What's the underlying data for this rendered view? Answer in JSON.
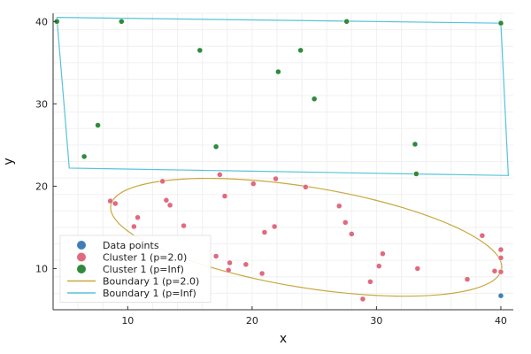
{
  "chart_data": {
    "type": "scatter",
    "xlabel": "x",
    "ylabel": "y",
    "xlim": [
      4,
      41
    ],
    "ylim": [
      5,
      41
    ],
    "x_ticks": [
      10,
      20,
      30,
      40
    ],
    "y_ticks": [
      10,
      20,
      30,
      40
    ],
    "grid": true,
    "legend_position": "bottom-left",
    "series": [
      {
        "name": "Data points",
        "kind": "points",
        "color": "#3f7fb6",
        "points": [
          [
            40.0,
            6.7
          ]
        ]
      },
      {
        "name": "Cluster 1 (p=2.0)",
        "kind": "points",
        "color": "#e06a7f",
        "points": [
          [
            8.6,
            18.2
          ],
          [
            9.0,
            17.9
          ],
          [
            10.5,
            15.1
          ],
          [
            10.8,
            16.2
          ],
          [
            12.8,
            20.6
          ],
          [
            13.1,
            18.3
          ],
          [
            13.4,
            17.7
          ],
          [
            14.5,
            15.2
          ],
          [
            17.1,
            11.5
          ],
          [
            17.4,
            21.4
          ],
          [
            17.8,
            18.8
          ],
          [
            18.1,
            9.8
          ],
          [
            18.2,
            10.7
          ],
          [
            19.5,
            10.5
          ],
          [
            20.1,
            20.3
          ],
          [
            20.8,
            9.4
          ],
          [
            21.0,
            14.4
          ],
          [
            21.8,
            15.1
          ],
          [
            21.9,
            20.9
          ],
          [
            24.3,
            19.9
          ],
          [
            27.0,
            17.6
          ],
          [
            27.5,
            15.6
          ],
          [
            28.0,
            14.2
          ],
          [
            28.9,
            6.3
          ],
          [
            29.5,
            8.4
          ],
          [
            30.2,
            10.3
          ],
          [
            30.5,
            11.8
          ],
          [
            33.3,
            10.0
          ],
          [
            37.3,
            8.7
          ],
          [
            38.5,
            14.0
          ],
          [
            39.5,
            9.7
          ],
          [
            40.0,
            12.3
          ],
          [
            40.0,
            11.3
          ],
          [
            40.0,
            9.6
          ]
        ]
      },
      {
        "name": "Cluster 1 (p=Inf)",
        "kind": "points",
        "color": "#2f8a3a",
        "points": [
          [
            4.3,
            40.0
          ],
          [
            6.5,
            23.6
          ],
          [
            7.6,
            27.4
          ],
          [
            9.5,
            40.0
          ],
          [
            15.8,
            36.5
          ],
          [
            17.1,
            24.8
          ],
          [
            22.1,
            33.9
          ],
          [
            23.9,
            36.5
          ],
          [
            25.0,
            30.6
          ],
          [
            27.6,
            40.0
          ],
          [
            33.1,
            25.1
          ],
          [
            33.2,
            21.5
          ],
          [
            40.0,
            39.8
          ]
        ]
      },
      {
        "name": "Boundary 1 (p=2.0)",
        "kind": "ellipse",
        "color": "#c8a83e",
        "center": [
          24.35,
          13.8
        ],
        "semi_axes": [
          16.2,
          6.0
        ],
        "rotation_deg": -15
      },
      {
        "name": "Boundary 1 (p=Inf)",
        "kind": "polygon",
        "color": "#56c4d8",
        "points": [
          [
            4.3,
            40.5
          ],
          [
            40.0,
            39.8
          ],
          [
            40.6,
            21.3
          ],
          [
            5.3,
            22.2
          ],
          [
            4.3,
            40.5
          ]
        ]
      }
    ]
  }
}
